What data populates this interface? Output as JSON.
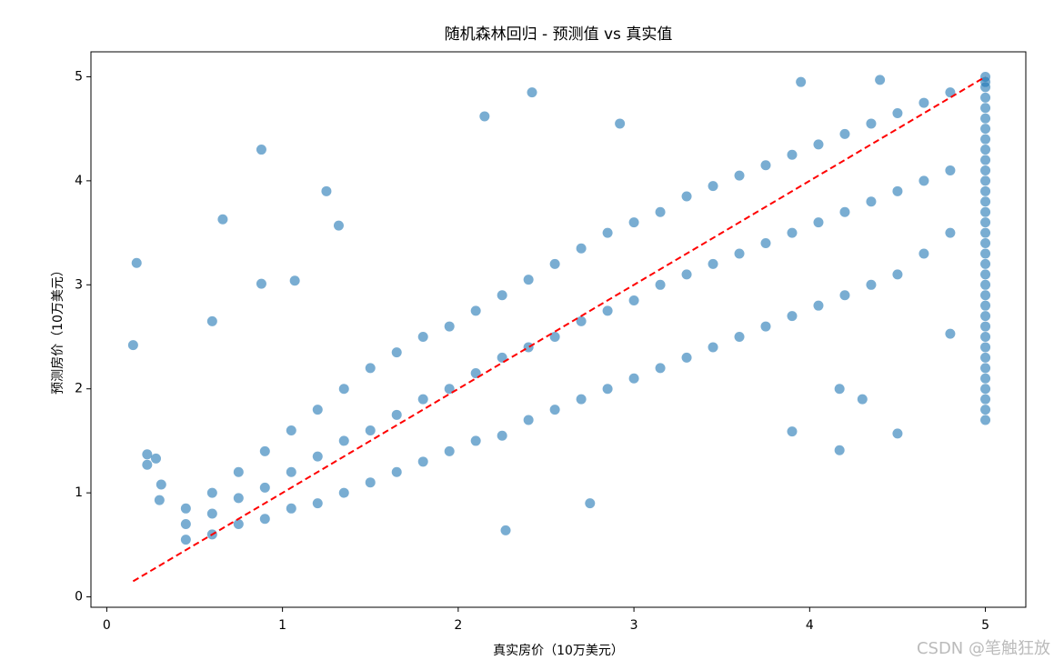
{
  "chart_data": {
    "type": "scatter",
    "title": "随机森林回归 - 预测值 vs 真实值",
    "x_label": "真实房价（10万美元）",
    "y_label": "预测房价（10万美元）",
    "watermark": "CSDN @笔触狂放",
    "color": "#1f77b4",
    "x": [
      0.17,
      0.15,
      0.88,
      0.66,
      1.25,
      1.32,
      2.42,
      2.15,
      2.92,
      3.95,
      4.4,
      0.6,
      0.23,
      0.23,
      0.28,
      0.31,
      0.3,
      2.27,
      2.75,
      4.5,
      4.17,
      3.9,
      4.3,
      4.17,
      4.8,
      1.07,
      0.88,
      5,
      5,
      5,
      5,
      5,
      5,
      5,
      5,
      5,
      5,
      5,
      5,
      5,
      5,
      5,
      5,
      5,
      5,
      5,
      5,
      5,
      5,
      5,
      5,
      5,
      5,
      5,
      5,
      5,
      5,
      5,
      5,
      5,
      5,
      5,
      0.45,
      0.45,
      0.45,
      0.6,
      0.6,
      0.6,
      0.75,
      0.75,
      0.75,
      0.9,
      0.9,
      0.9,
      1.05,
      1.05,
      1.05,
      1.2,
      1.2,
      1.2,
      1.35,
      1.35,
      1.35,
      1.5,
      1.5,
      1.5,
      1.65,
      1.65,
      1.65,
      1.8,
      1.8,
      1.8,
      1.95,
      1.95,
      1.95,
      2.1,
      2.1,
      2.1,
      2.25,
      2.25,
      2.25,
      2.4,
      2.4,
      2.4,
      2.55,
      2.55,
      2.55,
      2.7,
      2.7,
      2.7,
      2.85,
      2.85,
      2.85,
      3.0,
      3.0,
      3.0,
      3.15,
      3.15,
      3.15,
      3.3,
      3.3,
      3.3,
      3.45,
      3.45,
      3.45,
      3.6,
      3.6,
      3.6,
      3.75,
      3.75,
      3.75,
      3.9,
      3.9,
      3.9,
      4.05,
      4.05,
      4.05,
      4.2,
      4.2,
      4.2,
      4.35,
      4.35,
      4.35,
      4.5,
      4.5,
      4.5,
      4.65,
      4.65,
      4.65,
      4.8,
      4.8,
      4.8
    ],
    "y": [
      3.21,
      2.42,
      4.3,
      3.63,
      3.9,
      3.57,
      4.85,
      4.62,
      4.55,
      4.95,
      4.97,
      2.65,
      1.37,
      1.27,
      1.33,
      1.08,
      0.93,
      0.64,
      0.9,
      1.57,
      1.41,
      1.59,
      1.9,
      2.0,
      2.53,
      3.04,
      3.01,
      5.0,
      4.95,
      4.9,
      4.8,
      4.7,
      4.6,
      4.5,
      4.4,
      4.3,
      4.2,
      4.1,
      4.0,
      3.9,
      3.8,
      3.7,
      3.6,
      3.5,
      3.4,
      3.3,
      3.2,
      3.1,
      3.0,
      2.9,
      2.8,
      2.7,
      2.6,
      2.5,
      2.4,
      2.3,
      2.2,
      2.1,
      2.0,
      1.9,
      1.8,
      1.7,
      0.55,
      0.7,
      0.85,
      0.6,
      0.8,
      1.0,
      0.7,
      0.95,
      1.2,
      0.75,
      1.05,
      1.4,
      0.85,
      1.2,
      1.6,
      0.9,
      1.35,
      1.8,
      1.0,
      1.5,
      2.0,
      1.1,
      1.6,
      2.2,
      1.2,
      1.75,
      2.35,
      1.3,
      1.9,
      2.5,
      1.4,
      2.0,
      2.6,
      1.5,
      2.15,
      2.75,
      1.55,
      2.3,
      2.9,
      1.7,
      2.4,
      3.05,
      1.8,
      2.5,
      3.2,
      1.9,
      2.65,
      3.35,
      2.0,
      2.75,
      3.5,
      2.1,
      2.85,
      3.6,
      2.2,
      3.0,
      3.7,
      2.3,
      3.1,
      3.85,
      2.4,
      3.2,
      3.95,
      2.5,
      3.3,
      4.05,
      2.6,
      3.4,
      4.15,
      2.7,
      3.5,
      4.25,
      2.8,
      3.6,
      4.35,
      2.9,
      3.7,
      4.45,
      3.0,
      3.8,
      4.55,
      3.1,
      3.9,
      4.65,
      3.3,
      4.0,
      4.75,
      3.5,
      4.1,
      4.85
    ],
    "reference_line": {
      "x": [
        0.15,
        5.0
      ],
      "y": [
        0.15,
        5.0
      ],
      "color": "#ff0000",
      "dashed": true
    },
    "xlim": [
      -0.09,
      5.23
    ],
    "ylim": [
      -0.1,
      5.24
    ],
    "xticks": [
      0,
      1,
      2,
      3,
      4,
      5
    ],
    "yticks": [
      0,
      1,
      2,
      3,
      4,
      5
    ],
    "grid": false
  }
}
